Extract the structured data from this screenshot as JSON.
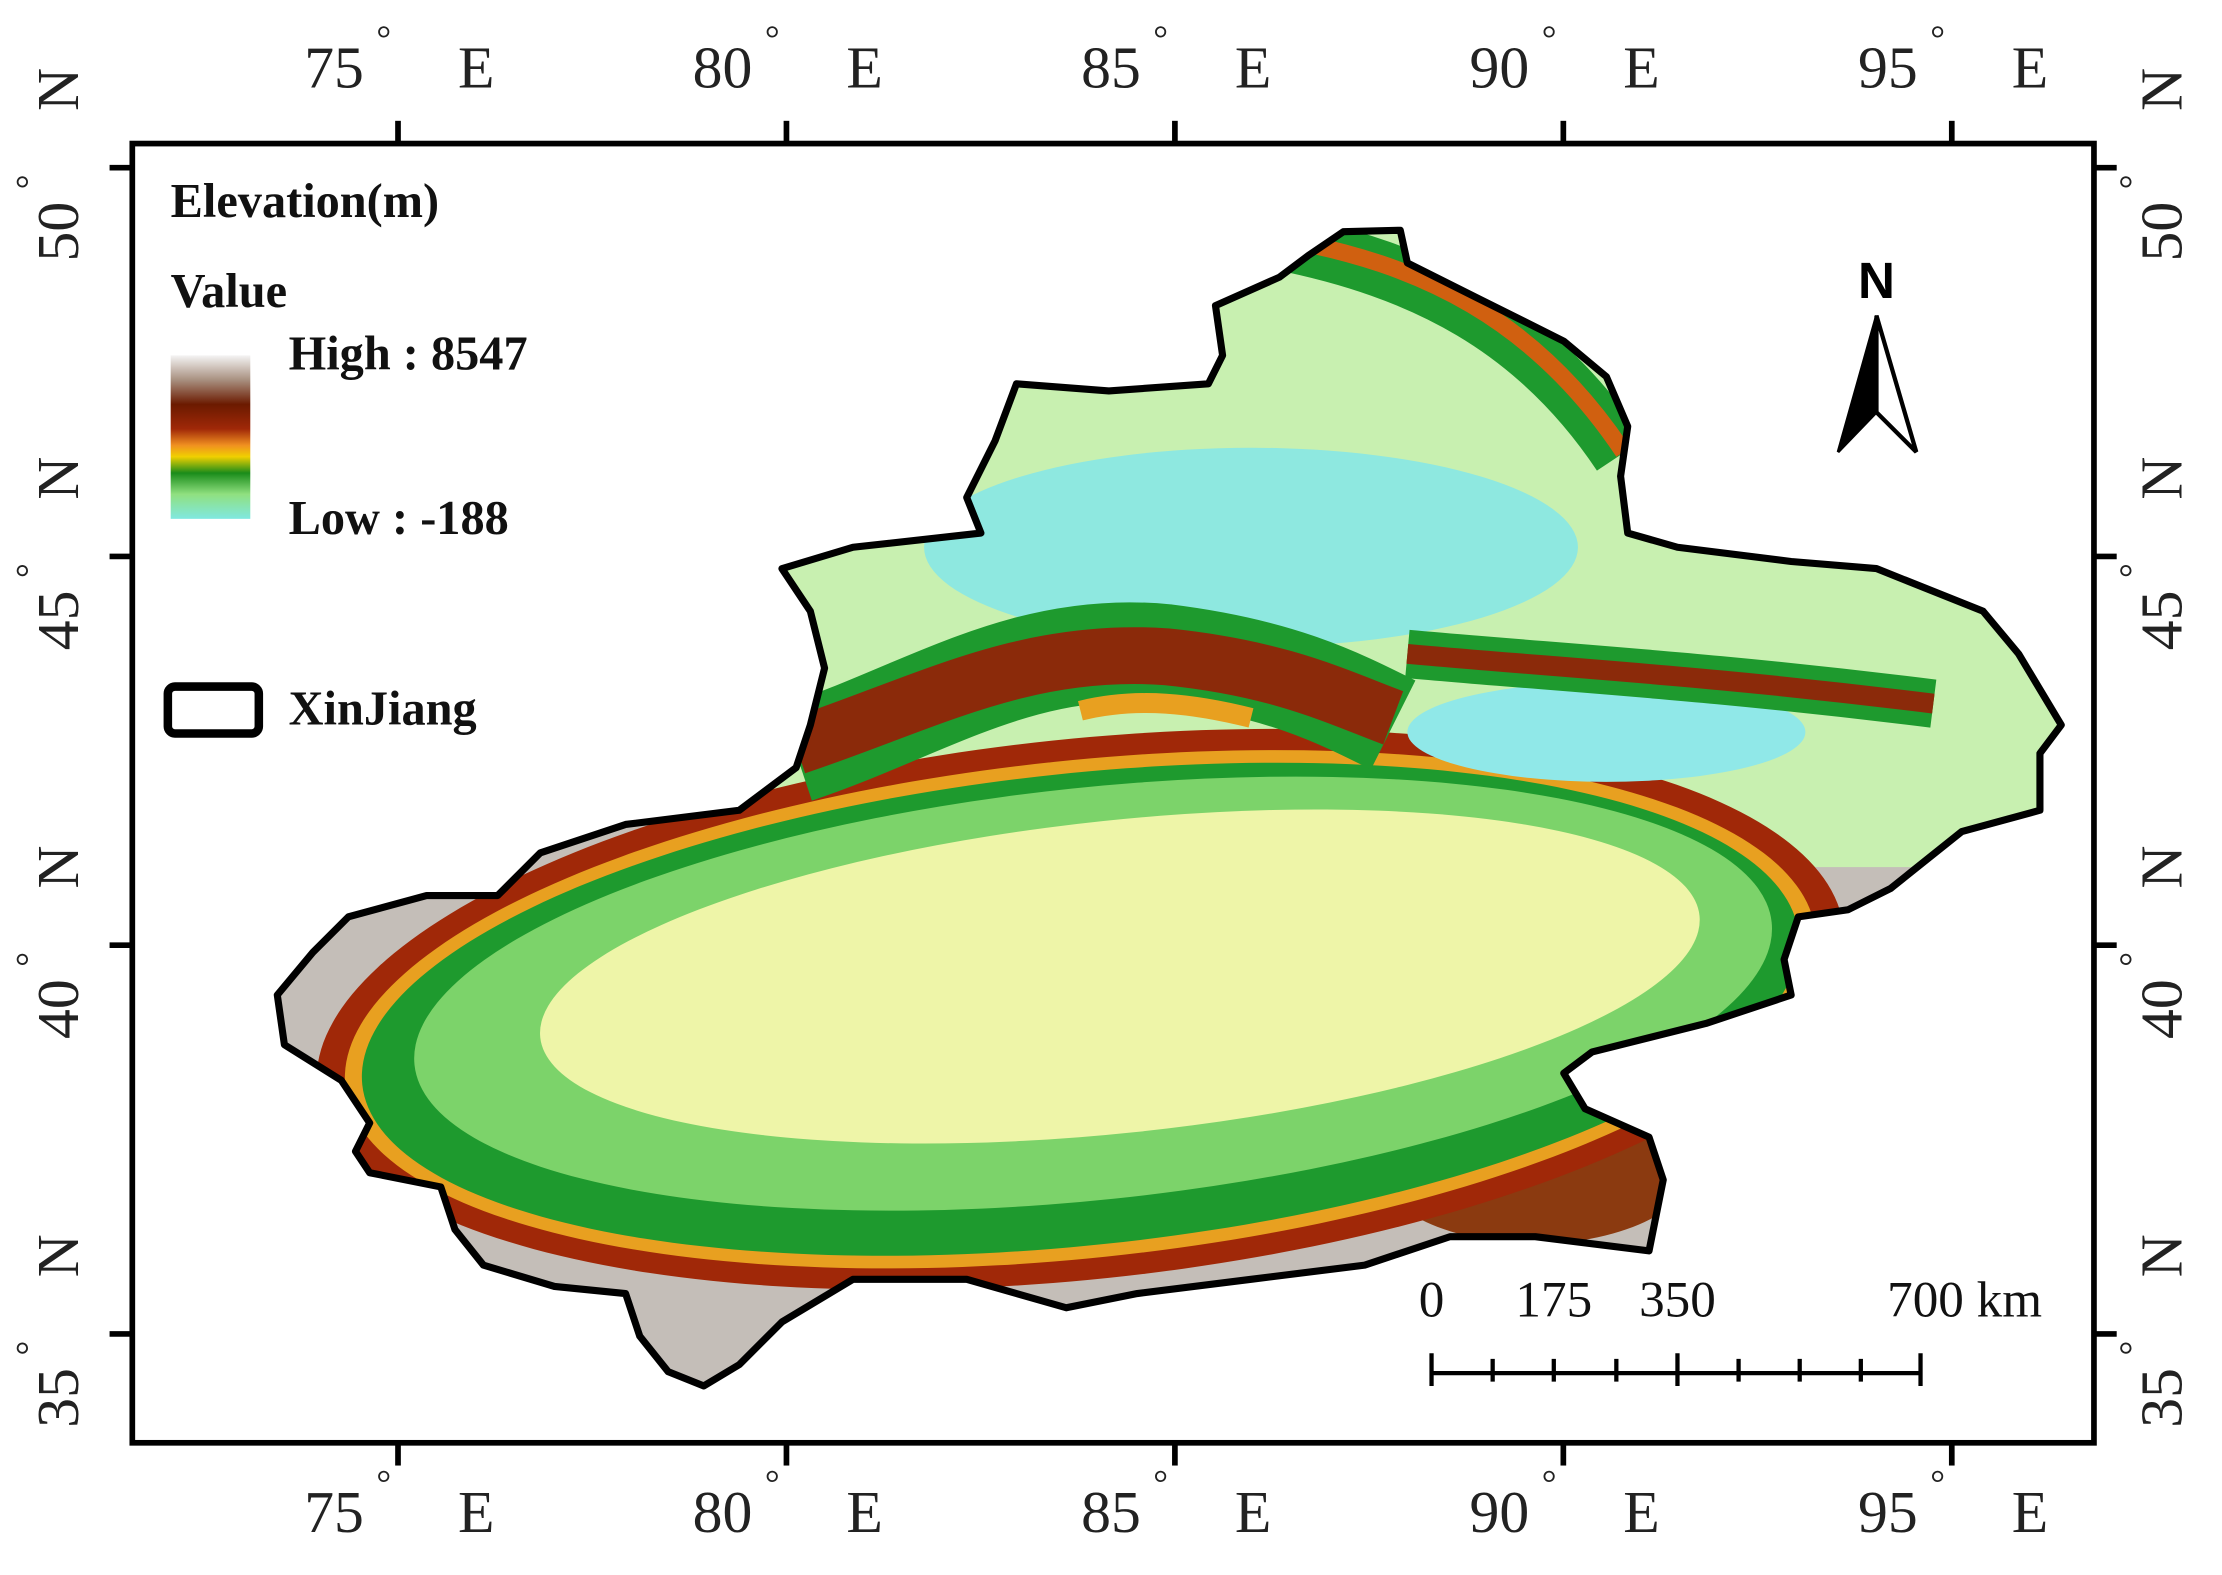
{
  "map": {
    "legend": {
      "title": "Elevation(m)",
      "subtitle": "Value",
      "high_label": "High : 8547",
      "low_label": "Low : -188",
      "boundary_label": "XinJiang"
    },
    "longitude": {
      "hemisphere": "E",
      "degree": "°",
      "lim": [
        71.58,
        96.83
      ],
      "ticks": [
        75,
        80,
        85,
        90,
        95
      ]
    },
    "latitude": {
      "hemisphere": "N",
      "degree": "°",
      "lim": [
        33.6,
        50.31
      ],
      "ticks": [
        35,
        40,
        45,
        50
      ]
    },
    "north_arrow": "N",
    "scale_bar": [
      "0",
      "175",
      "350",
      "700 km"
    ]
  }
}
